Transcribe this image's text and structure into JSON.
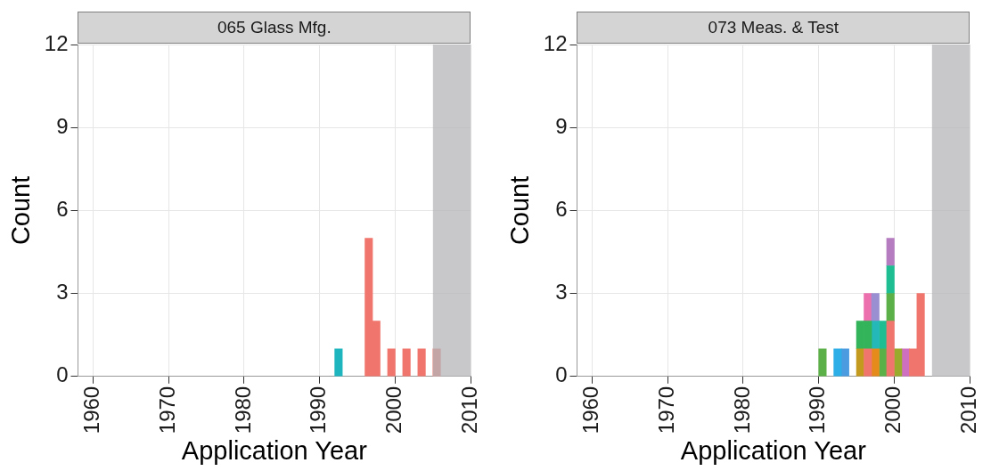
{
  "chart_data": [
    {
      "type": "bar",
      "title": "065 Glass Mfg.",
      "xlabel": "Application Year",
      "ylabel": "Count",
      "stacked": true,
      "legend": false,
      "grid": true,
      "x": [
        1992.5,
        1996.5,
        1997.5,
        1999.5,
        2001.5,
        2003.5,
        2005.5
      ],
      "series": [
        {
          "color": "#f0766d",
          "values": [
            null,
            5,
            2,
            1,
            1,
            1,
            1
          ]
        },
        {
          "color": "#1fb5be",
          "values": [
            1,
            null,
            null,
            null,
            null,
            null,
            null
          ]
        }
      ],
      "xlim": [
        1958,
        2010
      ],
      "xticks": [
        1960,
        1970,
        1980,
        1990,
        2000,
        2010
      ],
      "ylim": [
        0,
        12
      ],
      "yticks": [
        0,
        3,
        6,
        9,
        12
      ],
      "bands": [
        {
          "axis": "x",
          "from": 2005,
          "to": 2010,
          "color": "#b5b6b9"
        }
      ]
    },
    {
      "type": "bar",
      "title": "073 Meas. & Test",
      "xlabel": "Application Year",
      "ylabel": "Count",
      "stacked": true,
      "legend": false,
      "grid": true,
      "x": [
        1990.5,
        1992.5,
        1993.5,
        1995.5,
        1996.5,
        1997.5,
        1998.5,
        1999.5,
        2000.5,
        2001.5,
        2002.5,
        2003.5
      ],
      "series": [
        {
          "color": "#f0766d",
          "values": [
            null,
            null,
            null,
            null,
            1,
            null,
            null,
            2,
            null,
            null,
            1,
            3
          ]
        },
        {
          "color": "#c49a1e",
          "values": [
            null,
            null,
            null,
            1,
            null,
            null,
            null,
            null,
            null,
            null,
            null,
            null
          ]
        },
        {
          "color": "#e58b1c",
          "values": [
            null,
            null,
            null,
            null,
            null,
            1,
            null,
            null,
            null,
            null,
            null,
            null
          ]
        },
        {
          "color": "#9aaa2c",
          "values": [
            null,
            null,
            null,
            null,
            null,
            null,
            null,
            null,
            1,
            null,
            null,
            null
          ]
        },
        {
          "color": "#5cb048",
          "values": [
            1,
            null,
            null,
            null,
            null,
            null,
            1,
            1,
            null,
            null,
            null,
            null
          ]
        },
        {
          "color": "#33b35a",
          "values": [
            null,
            null,
            null,
            1,
            1,
            null,
            null,
            null,
            null,
            null,
            null,
            null
          ]
        },
        {
          "color": "#24b8b8",
          "values": [
            null,
            null,
            null,
            null,
            null,
            1,
            null,
            null,
            null,
            null,
            null,
            null
          ]
        },
        {
          "color": "#1fbe92",
          "values": [
            null,
            null,
            null,
            null,
            null,
            null,
            1,
            1,
            null,
            null,
            null,
            null
          ]
        },
        {
          "color": "#2eaee6",
          "values": [
            null,
            1,
            null,
            null,
            null,
            null,
            null,
            null,
            null,
            null,
            null,
            null
          ]
        },
        {
          "color": "#4a9be0",
          "values": [
            null,
            null,
            1,
            null,
            null,
            null,
            null,
            null,
            null,
            null,
            null,
            null
          ]
        },
        {
          "color": "#9a8fd0",
          "values": [
            null,
            null,
            null,
            null,
            null,
            1,
            null,
            null,
            null,
            null,
            null,
            null
          ]
        },
        {
          "color": "#b57cc0",
          "values": [
            null,
            null,
            null,
            null,
            null,
            null,
            null,
            1,
            null,
            null,
            null,
            null
          ]
        },
        {
          "color": "#ec6fae",
          "values": [
            null,
            null,
            null,
            null,
            1,
            null,
            null,
            null,
            null,
            null,
            null,
            null
          ]
        },
        {
          "color": "#cf6fc0",
          "values": [
            null,
            null,
            null,
            null,
            null,
            null,
            null,
            null,
            null,
            1,
            null,
            null
          ]
        }
      ],
      "xlim": [
        1958,
        2010
      ],
      "xticks": [
        1960,
        1970,
        1980,
        1990,
        2000,
        2010
      ],
      "ylim": [
        0,
        12
      ],
      "yticks": [
        0,
        3,
        6,
        9,
        12
      ],
      "bands": [
        {
          "axis": "x",
          "from": 2005,
          "to": 2010,
          "color": "#b5b6b9"
        }
      ]
    }
  ]
}
